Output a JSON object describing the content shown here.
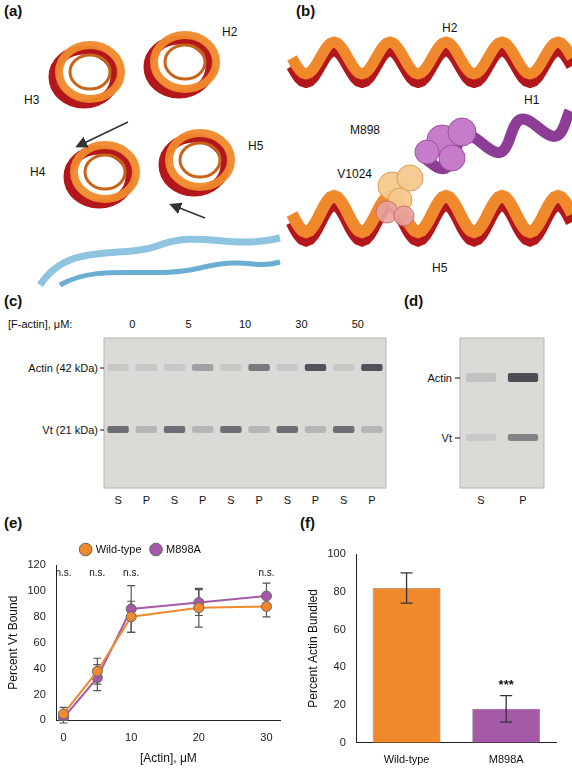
{
  "panels": {
    "a": {
      "panel_label": "(a)",
      "helices": [
        "H2",
        "H3",
        "H4",
        "H5"
      ]
    },
    "b": {
      "panel_label": "(b)",
      "labels": [
        "H2",
        "M898",
        "V1024",
        "H1",
        "H5"
      ]
    },
    "c": {
      "panel_label": "(c)",
      "concentration_label": "[F-actin], μM:",
      "concentrations": [
        "0",
        "5",
        "10",
        "30",
        "50"
      ],
      "bands": [
        "Actin (42 kDa)",
        "Vt (21 kDa)"
      ],
      "lanes": [
        "S",
        "P"
      ]
    },
    "d": {
      "panel_label": "(d)",
      "bands": [
        "Actin",
        "Vt"
      ],
      "lanes": [
        "S",
        "P"
      ]
    }
  },
  "chart_data": [
    {
      "panel_label": "(e)",
      "type": "line",
      "x_label": "[Actin], μM",
      "y_label": "Percent Vt Bound",
      "x": [
        0,
        5,
        10,
        20,
        30
      ],
      "series": [
        {
          "name": "Wild-type",
          "color": "#f0892c",
          "marker": "circle",
          "line_style": "solid",
          "values": [
            5,
            38,
            80,
            87,
            88
          ],
          "errors": [
            5,
            10,
            12,
            15,
            8
          ]
        },
        {
          "name": "M898A",
          "color": "#a45aa6",
          "marker": "circle",
          "line_style": "solid",
          "values": [
            2,
            33,
            86,
            91,
            96
          ],
          "errors": [
            4,
            10,
            18,
            10,
            10
          ]
        }
      ],
      "xlim": [
        -1,
        32
      ],
      "xticks": [
        0,
        10,
        20,
        30
      ],
      "ylim": [
        0,
        120
      ],
      "yticks": [
        0,
        20,
        40,
        60,
        80,
        100,
        120
      ],
      "grid": false,
      "legend": "top",
      "annotations": [
        {
          "x": 0,
          "text": "n.s."
        },
        {
          "x": 5,
          "text": "n.s."
        },
        {
          "x": 10,
          "text": "n.s."
        },
        {
          "x": 30,
          "text": "n.s."
        }
      ]
    },
    {
      "panel_label": "(f)",
      "type": "bar",
      "y_label": "Percent Actin Bundled",
      "categories": [
        "Wild-type",
        "M898A"
      ],
      "values": [
        82,
        18
      ],
      "errors": [
        8,
        7
      ],
      "colors": [
        "#f0892c",
        "#a45aa6"
      ],
      "ylim": [
        0,
        100
      ],
      "yticks": [
        0,
        20,
        40,
        60,
        80,
        100
      ],
      "grid": false,
      "annotations": [
        {
          "category": "M898A",
          "text": "***"
        }
      ]
    }
  ]
}
